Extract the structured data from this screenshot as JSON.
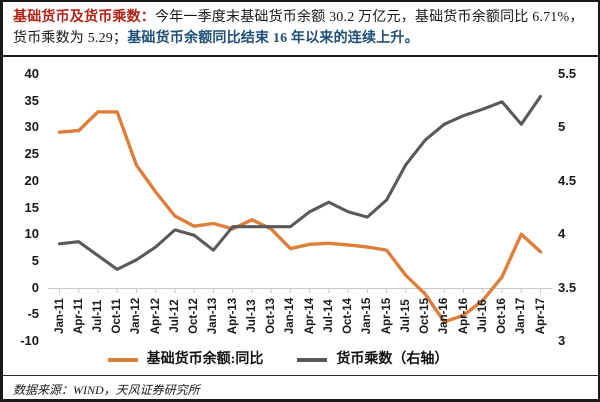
{
  "header": {
    "title_red": "基础货币及货币乘数：",
    "body_black": "今年一季度末基础货币余额 30.2 万亿元，基础货币余额同比 6.71%，货币乘数为 5.29；",
    "body_blue": "基础货币余额同比结束 16 年以来的连续上升。"
  },
  "colors": {
    "series_base_money": "#dd7e3b",
    "series_multiplier": "#595959",
    "title_red": "#b02318",
    "highlight_blue": "#1f4e79",
    "axis_line": "#c8c8c8"
  },
  "legend": {
    "series1": "基础货币余额:同比",
    "series2": "货币乘数（右轴）"
  },
  "source_note": "数据来源：WIND，天风证券研究所",
  "chart_data": {
    "type": "line",
    "title": "基础货币及货币乘数",
    "grid": false,
    "legend_position": "bottom",
    "categories": [
      "Jan-11",
      "Apr-11",
      "Jul-11",
      "Oct-11",
      "Jan-12",
      "Apr-12",
      "Jul-12",
      "Oct-12",
      "Jan-13",
      "Apr-13",
      "Jul-13",
      "Oct-13",
      "Jan-14",
      "Apr-14",
      "Jul-14",
      "Oct-14",
      "Jan-15",
      "Apr-15",
      "Jul-15",
      "Oct-15",
      "Jan-16",
      "Apr-16",
      "Jul-16",
      "Oct-16",
      "Jan-17",
      "Apr-17"
    ],
    "series": [
      {
        "name": "基础货币余额:同比",
        "axis": "left",
        "color": "#dd7e3b",
        "values": [
          29.1,
          29.4,
          32.9,
          32.9,
          22.9,
          17.9,
          13.4,
          11.5,
          12.0,
          11.0,
          12.7,
          11.0,
          7.3,
          8.1,
          8.3,
          8.0,
          7.6,
          7.0,
          2.3,
          -1.2,
          -6.4,
          -5.2,
          -2.4,
          2.0,
          10.0,
          6.71
        ]
      },
      {
        "name": "货币乘数（右轴）",
        "axis": "right",
        "color": "#595959",
        "values": [
          3.91,
          3.93,
          3.8,
          3.67,
          3.76,
          3.88,
          4.04,
          3.99,
          3.85,
          4.07,
          4.07,
          4.07,
          4.07,
          4.21,
          4.3,
          4.21,
          4.16,
          4.32,
          4.65,
          4.88,
          5.03,
          5.11,
          5.17,
          5.24,
          5.03,
          5.29
        ]
      }
    ],
    "left_axis": {
      "ticks": [
        "40",
        "35",
        "30",
        "25",
        "20",
        "15",
        "10",
        "5",
        "0",
        "-5",
        "-10"
      ],
      "min": -10,
      "max": 40
    },
    "right_axis": {
      "ticks": [
        "5.5",
        "5",
        "4.5",
        "4",
        "3.5",
        "3"
      ],
      "min": 3,
      "max": 5.5
    }
  }
}
